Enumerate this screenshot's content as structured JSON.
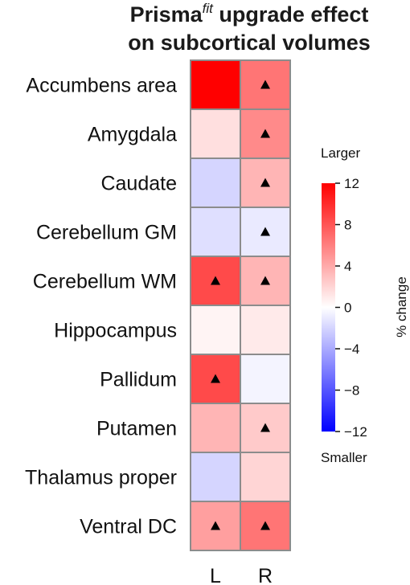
{
  "chart_data": {
    "type": "heatmap",
    "title": {
      "line1_prefix": "Prisma",
      "line1_superscript": "fit",
      "line1_suffix": " upgrade effect",
      "line2": "on subcortical volumes"
    },
    "rows": [
      "Accumbens area",
      "Amygdala",
      "Caudate",
      "Cerebellum GM",
      "Cerebellum WM",
      "Hippocampus",
      "Pallidum",
      "Putamen",
      "Thalamus proper",
      "Ventral DC"
    ],
    "columns": [
      "L",
      "R"
    ],
    "values": [
      [
        12,
        6.5
      ],
      [
        1.5,
        5.5
      ],
      [
        -2,
        3.5
      ],
      [
        -1.5,
        -1.0
      ],
      [
        8.5,
        3.5
      ],
      [
        0.5,
        1.0
      ],
      [
        8.5,
        -0.5
      ],
      [
        3.5,
        2.5
      ],
      [
        -2,
        2.0
      ],
      [
        4.5,
        6.5
      ]
    ],
    "significant": [
      [
        false,
        true
      ],
      [
        false,
        true
      ],
      [
        false,
        true
      ],
      [
        false,
        true
      ],
      [
        true,
        true
      ],
      [
        false,
        false
      ],
      [
        true,
        false
      ],
      [
        false,
        true
      ],
      [
        false,
        false
      ],
      [
        true,
        true
      ]
    ],
    "colorbar": {
      "label": "% change",
      "range": [
        -12,
        12
      ],
      "ticks": [
        12,
        8,
        4,
        0,
        -4,
        -8,
        -12
      ],
      "tick_labels": [
        "12",
        "8",
        "4",
        "0",
        "−4",
        "−8",
        "−12"
      ],
      "top_label": "Larger",
      "bottom_label": "Smaller",
      "colors": {
        "low": "#0000ff",
        "mid": "#ffffff",
        "high": "#ff0000"
      }
    },
    "grid_color": "#8c8c8c",
    "marker": "triangle"
  }
}
